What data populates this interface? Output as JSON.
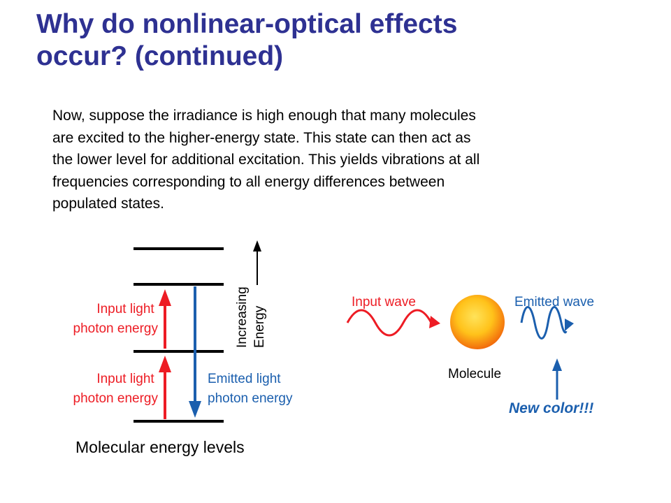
{
  "title": {
    "line1": "Why do nonlinear-optical effects",
    "line2": "occur? (continued)"
  },
  "paragraph": {
    "lines": [
      "Now, suppose the irradiance is high enough that many molecules",
      "are excited to the higher-energy state.  This state can then act as",
      "the lower level for additional excitation.  This yields vibrations at all",
      "frequencies corresponding to all energy differences between",
      "populated states."
    ]
  },
  "energy_diagram": {
    "input_label_1": [
      "Input light",
      "photon energy"
    ],
    "input_label_2": [
      "Input light",
      "photon energy"
    ],
    "emitted_label": [
      "Emitted light",
      "photon energy"
    ],
    "axis_label": [
      "Increasing",
      "Energy"
    ],
    "caption": "Molecular energy levels"
  },
  "wave_diagram": {
    "input_wave_label": "Input wave",
    "emitted_wave_label": "Emitted wave",
    "molecule_label": "Molecule",
    "new_color_label": "New color!!!"
  },
  "colors": {
    "title": "#2e3192",
    "input": "#ed1c24",
    "emitted": "#1b5fae",
    "molecule_center": "#ffe35a",
    "molecule_edge": "#f26c0c"
  }
}
